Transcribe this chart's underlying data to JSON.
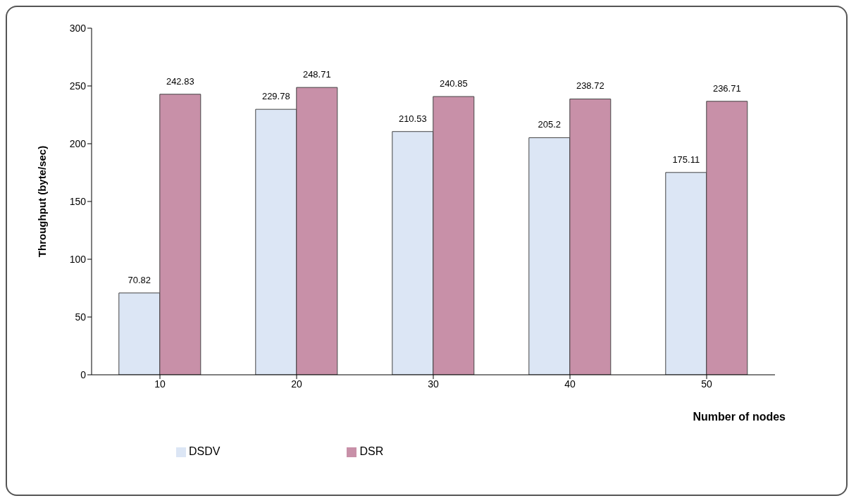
{
  "chart_data": {
    "type": "bar",
    "xlabel": "Number of nodes",
    "ylabel": "Throughput (byte/sec)",
    "categories": [
      "10",
      "20",
      "30",
      "40",
      "50"
    ],
    "series": [
      {
        "name": "DSDV",
        "color": "#dce6f5",
        "values": [
          70.82,
          229.78,
          210.53,
          205.2,
          175.11
        ]
      },
      {
        "name": "DSR",
        "color": "#c890a8",
        "values": [
          242.83,
          248.71,
          240.85,
          238.72,
          236.71
        ]
      }
    ],
    "ylim": [
      0,
      300
    ],
    "yticks": [
      0,
      50,
      100,
      150,
      200,
      250,
      300
    ],
    "grid": false,
    "legend": "bottom left",
    "data_labels": true
  }
}
